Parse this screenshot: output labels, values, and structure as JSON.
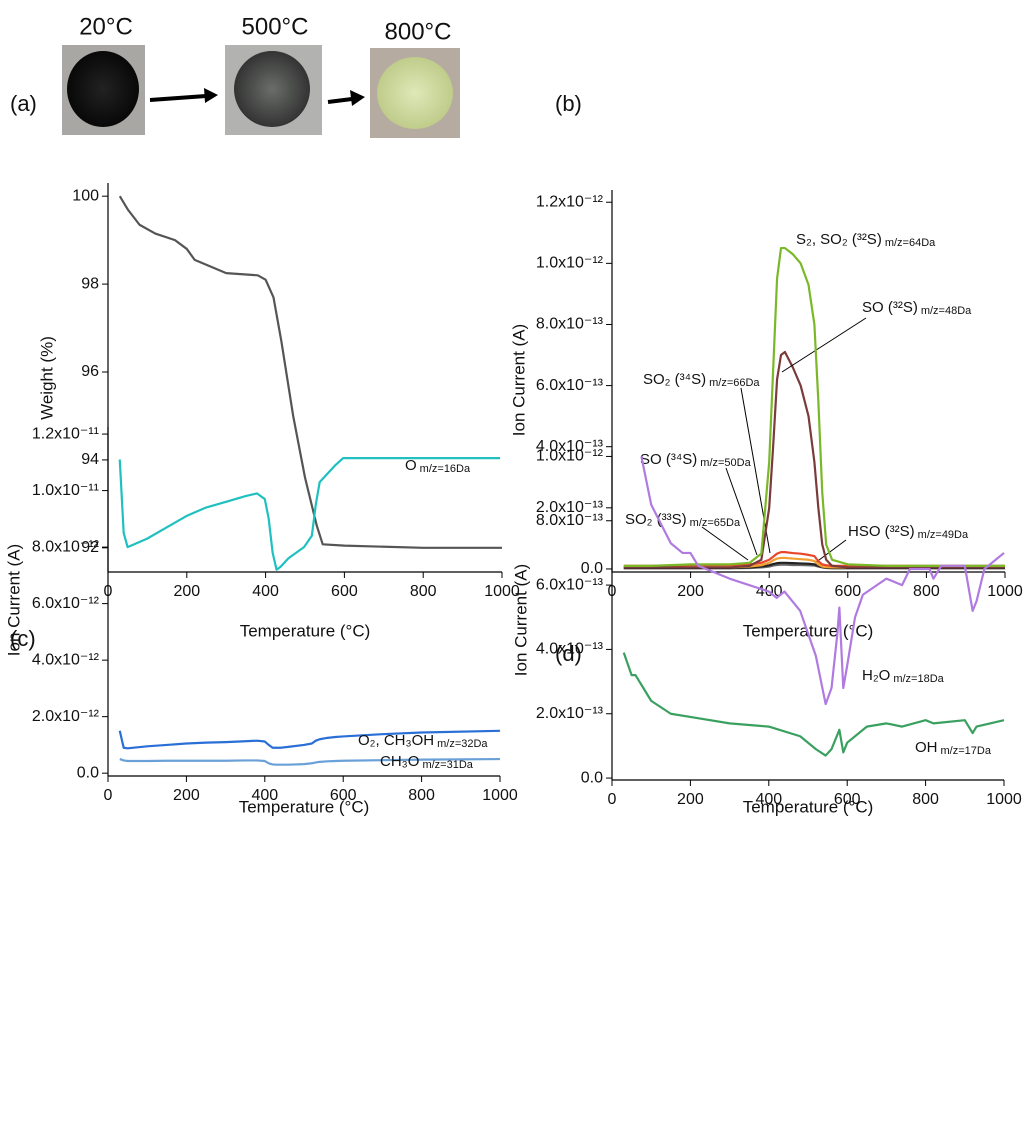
{
  "photos": [
    "20°C",
    "500°C",
    "800°C"
  ],
  "chart_data": [
    {
      "type": "line",
      "panel": "(a)",
      "x_label": "Temperature (°C)",
      "y_label": "Weight (%)",
      "xlim": [
        0,
        1000
      ],
      "xticks": [
        0,
        200,
        400,
        600,
        800,
        1000
      ],
      "ylim": [
        91.45,
        100.3
      ],
      "yticks": [
        92,
        94,
        96,
        98,
        100
      ],
      "x": [
        30,
        50,
        80,
        120,
        170,
        200,
        220,
        260,
        300,
        380,
        400,
        420,
        440,
        470,
        500,
        530,
        545,
        600,
        800,
        1000
      ],
      "series": [
        {
          "color": "#555555",
          "values": [
            100,
            99.7,
            99.35,
            99.15,
            99.0,
            98.8,
            98.55,
            98.4,
            98.25,
            98.2,
            98.1,
            97.7,
            96.7,
            95.0,
            93.6,
            92.5,
            92.08,
            92.05,
            92.0,
            92.0
          ]
        }
      ]
    },
    {
      "type": "line",
      "panel": "(b)",
      "x_label": "Temperature (°C)",
      "y_label": "Ion Current (A)",
      "xlim": [
        0,
        1000
      ],
      "xticks": [
        0,
        200,
        400,
        600,
        800,
        1000
      ],
      "ylim": [
        -1e-14,
        1.24e-12
      ],
      "yticks": [
        {
          "value": 0,
          "label": "0.0"
        },
        {
          "value": 2e-13,
          "label": "2.0x10⁻¹³"
        },
        {
          "value": 4e-13,
          "label": "4.0x10⁻¹³"
        },
        {
          "value": 6e-13,
          "label": "6.0x10⁻¹³"
        },
        {
          "value": 8e-13,
          "label": "8.0x10⁻¹³"
        },
        {
          "value": 1e-12,
          "label": "1.0x10⁻¹²"
        },
        {
          "value": 1.2e-12,
          "label": "1.2x10⁻¹²"
        }
      ],
      "x": [
        30,
        100,
        200,
        300,
        350,
        380,
        400,
        410,
        420,
        430,
        440,
        460,
        480,
        500,
        515,
        525,
        535,
        545,
        560,
        600,
        700,
        800,
        900,
        1000
      ],
      "series": [
        {
          "name": "HSO (³²S)",
          "mz": "m/z=49Da",
          "color": "#666666",
          "values": [
            2e-15,
            2e-15,
            2e-15,
            2e-15,
            3e-15,
            5e-15,
            8e-15,
            1.1e-14,
            1.3e-14,
            1.4e-14,
            1.4e-14,
            1.3e-14,
            1.3e-14,
            1.2e-14,
            1.1e-14,
            8e-15,
            5e-15,
            3e-15,
            2e-15,
            2e-15,
            2e-15,
            2e-15,
            2e-15,
            2e-15
          ]
        },
        {
          "name": "SO₂ (³³S)",
          "mz": "m/z=65Da",
          "color": "#222222",
          "values": [
            3e-15,
            3e-15,
            3e-15,
            3e-15,
            5e-15,
            8e-15,
            1.2e-14,
            1.6e-14,
            1.9e-14,
            2e-14,
            2e-14,
            1.9e-14,
            1.8e-14,
            1.7e-14,
            1.5e-14,
            1e-14,
            6e-15,
            4e-15,
            3e-15,
            3e-15,
            3e-15,
            3e-15,
            3e-15,
            3e-15
          ]
        },
        {
          "name": "SO (³⁴S)",
          "mz": "m/z=50Da",
          "color": "#f0a030",
          "values": [
            5e-15,
            5e-15,
            5e-15,
            5e-15,
            8e-15,
            1.2e-14,
            2e-14,
            2.8e-14,
            3.4e-14,
            3.6e-14,
            3.6e-14,
            3.4e-14,
            3.2e-14,
            3e-14,
            2.6e-14,
            1.5e-14,
            8e-15,
            6e-15,
            5e-15,
            5e-15,
            5e-15,
            5e-15,
            5e-15,
            5e-15
          ]
        },
        {
          "name": "SO₂ (³⁴S)",
          "mz": "m/z=66Da",
          "color": "#e8472b",
          "values": [
            1e-14,
            1e-14,
            1.2e-14,
            1.2e-14,
            1.5e-14,
            2e-14,
            3e-14,
            4e-14,
            5e-14,
            5.5e-14,
            5.5e-14,
            5.2e-14,
            5e-14,
            4.6e-14,
            4.2e-14,
            2.5e-14,
            1.5e-14,
            1.2e-14,
            1e-14,
            1e-14,
            1e-14,
            1e-14,
            1e-14,
            1e-14
          ]
        },
        {
          "name": "SO (³²S)",
          "mz": "m/z=48Da",
          "color": "#7a3b3b",
          "values": [
            5e-15,
            5e-15,
            5e-15,
            5e-15,
            1e-14,
            3e-14,
            2e-13,
            4e-13,
            6.2e-13,
            7e-13,
            7.1e-13,
            6.6e-13,
            6e-13,
            5e-13,
            3.5e-13,
            2e-13,
            8e-14,
            3e-14,
            1e-14,
            5e-15,
            5e-15,
            5e-15,
            5e-15,
            5e-15
          ]
        },
        {
          "name": "S₂, SO₂ (³²S)",
          "mz": "m/z=64Da",
          "color": "#7ab828",
          "values": [
            1e-14,
            1e-14,
            1.5e-14,
            1.5e-14,
            2e-14,
            5e-14,
            3.5e-13,
            6.5e-13,
            9.5e-13,
            1.05e-12,
            1.05e-12,
            1.03e-12,
            1e-12,
            9.3e-13,
            8e-13,
            5.5e-13,
            2.5e-13,
            8e-14,
            3e-14,
            1.5e-14,
            1e-14,
            1e-14,
            1e-14,
            1e-14
          ]
        }
      ]
    },
    {
      "type": "line",
      "panel": "(c)",
      "x_label": "Temperature (°C)",
      "y_label": "Ion Current (A)",
      "xlim": [
        0,
        1000
      ],
      "xticks": [
        0,
        200,
        400,
        600,
        800,
        1000
      ],
      "ylim": [
        -1e-13,
        1.225e-11
      ],
      "yticks": [
        {
          "value": 0,
          "label": "0.0"
        },
        {
          "value": 2e-12,
          "label": "2.0x10⁻¹²"
        },
        {
          "value": 4e-12,
          "label": "4.0x10⁻¹²"
        },
        {
          "value": 6e-12,
          "label": "6.0x10⁻¹²"
        },
        {
          "value": 8e-12,
          "label": "8.0x10⁻¹²"
        },
        {
          "value": 1e-11,
          "label": "1.0x10⁻¹¹"
        },
        {
          "value": 1.2e-11,
          "label": "1.2x10⁻¹¹"
        }
      ],
      "x": [
        30,
        40,
        50,
        100,
        150,
        200,
        250,
        300,
        350,
        380,
        400,
        410,
        420,
        430,
        440,
        460,
        500,
        520,
        530,
        540,
        560,
        580,
        600,
        700,
        800,
        1000
      ],
      "series": [
        {
          "name": "O",
          "mz": "m/z=16Da",
          "color": "#20c0c0",
          "values": [
            1.11e-11,
            8.5e-12,
            8e-12,
            8.3e-12,
            8.7e-12,
            9.1e-12,
            9.4e-12,
            9.6e-12,
            9.8e-12,
            9.9e-12,
            9.7e-12,
            9e-12,
            7.8e-12,
            7.2e-12,
            7.3e-12,
            7.6e-12,
            8e-12,
            8.4e-12,
            9.5e-12,
            1.03e-11,
            1.06e-11,
            1.09e-11,
            1.115e-11,
            1.115e-11,
            1.115e-11,
            1.115e-11
          ]
        },
        {
          "name": "O₂, CH₃OH",
          "mz": "m/z=32Da",
          "color": "#2a6fd6",
          "values": [
            1.5e-12,
            9e-13,
            8.8e-13,
            9.5e-13,
            1e-12,
            1.05e-12,
            1.08e-12,
            1.1e-12,
            1.13e-12,
            1.15e-12,
            1.12e-12,
            1e-12,
            9e-13,
            9e-13,
            9e-13,
            9.3e-13,
            1e-12,
            1.05e-12,
            1.15e-12,
            1.2e-12,
            1.25e-12,
            1.28e-12,
            1.3e-12,
            1.38e-12,
            1.44e-12,
            1.5e-12
          ]
        },
        {
          "name": "CH₃O",
          "mz": "m/z=31Da",
          "color": "#6aa0d8",
          "values": [
            5e-13,
            4.5e-13,
            4.3e-13,
            4.3e-13,
            4.4e-13,
            4.4e-13,
            4.4e-13,
            4.4e-13,
            4.5e-13,
            4.5e-13,
            4.3e-13,
            3.5e-13,
            3.1e-13,
            3e-13,
            3e-13,
            3e-13,
            3.2e-13,
            3.5e-13,
            3.8e-13,
            4e-13,
            4.2e-13,
            4.3e-13,
            4.4e-13,
            4.6e-13,
            4.8e-13,
            5e-13
          ]
        }
      ]
    },
    {
      "type": "line",
      "panel": "(d)",
      "x_label": "Temperature (°C)",
      "y_label": "Ion Current (A)",
      "xlim": [
        0,
        1000
      ],
      "xticks": [
        0,
        200,
        400,
        600,
        800,
        1000
      ],
      "ylim": [
        -6e-15,
        1.02e-12
      ],
      "yticks": [
        {
          "value": 0,
          "label": "0.0"
        },
        {
          "value": 2e-13,
          "label": "2.0x10⁻¹³"
        },
        {
          "value": 4e-13,
          "label": "4.0x10⁻¹³"
        },
        {
          "value": 6e-13,
          "label": "6.0x10⁻¹³"
        },
        {
          "value": 8e-13,
          "label": "8.0x10⁻¹³"
        },
        {
          "value": 1e-12,
          "label": "1.0x10⁻¹²"
        }
      ],
      "series": [
        {
          "name": "H₂O",
          "mz": "m/z=18Da",
          "color": "#b07ae0",
          "x": [
            75,
            100,
            150,
            180,
            200,
            220,
            300,
            400,
            420,
            440,
            480,
            520,
            545,
            560,
            575,
            580,
            590,
            600,
            620,
            640,
            700,
            740,
            760,
            810,
            820,
            840,
            900,
            920,
            930,
            950,
            1000
          ],
          "values": [
            1e-12,
            8.5e-13,
            7.3e-13,
            7e-13,
            7e-13,
            6.6e-13,
            6.2e-13,
            5.8e-13,
            5.6e-13,
            5.8e-13,
            5.2e-13,
            3.8e-13,
            2.3e-13,
            2.8e-13,
            4.5e-13,
            5.3e-13,
            2.8e-13,
            3.5e-13,
            5e-13,
            5.7e-13,
            6.2e-13,
            6e-13,
            6.5e-13,
            6.5e-13,
            6.2e-13,
            6.6e-13,
            6.6e-13,
            5.2e-13,
            5.5e-13,
            6.5e-13,
            7e-13
          ]
        },
        {
          "name": "OH",
          "mz": "m/z=17Da",
          "color": "#3aa060",
          "x": [
            30,
            50,
            60,
            80,
            100,
            150,
            200,
            300,
            400,
            480,
            520,
            545,
            560,
            580,
            590,
            600,
            650,
            700,
            740,
            800,
            820,
            900,
            920,
            930,
            1000
          ],
          "values": [
            3.9e-13,
            3.2e-13,
            3.2e-13,
            2.8e-13,
            2.4e-13,
            2e-13,
            1.9e-13,
            1.7e-13,
            1.6e-13,
            1.3e-13,
            9e-14,
            7e-14,
            9e-14,
            1.5e-13,
            8e-14,
            1.1e-13,
            1.6e-13,
            1.7e-13,
            1.6e-13,
            1.8e-13,
            1.7e-13,
            1.8e-13,
            1.4e-13,
            1.6e-13,
            1.8e-13
          ]
        }
      ]
    }
  ]
}
